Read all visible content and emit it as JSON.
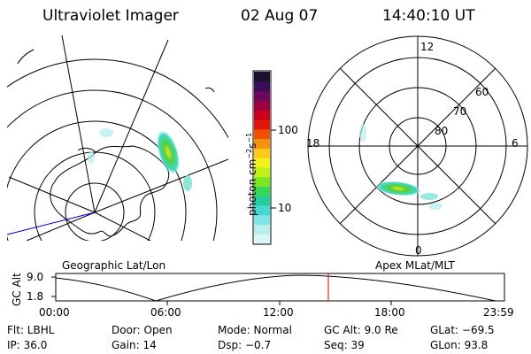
{
  "header": {
    "instrument": "Ultraviolet Imager",
    "date": "02 Aug 07",
    "time": "14:40:10 UT"
  },
  "left_panel": {
    "caption": "Geographic Lat/Lon"
  },
  "right_panel": {
    "caption": "Apex MLat/MLT",
    "mlt_labels": [
      "12",
      "18",
      "6",
      "0"
    ],
    "lat_labels": [
      "60",
      "70",
      "80"
    ]
  },
  "colorbar": {
    "unit_label": "photon cm",
    "unit_sup1": "−2",
    "unit_mid": "s",
    "unit_sup2": "−1",
    "tick_100": "100",
    "tick_10": "10",
    "colors": [
      "#1a1030",
      "#3a0c5a",
      "#6a0860",
      "#9a0040",
      "#c8001a",
      "#e0140a",
      "#f05000",
      "#f7900a",
      "#ffc814",
      "#f2f21a",
      "#bff01a",
      "#7ee620",
      "#38d858",
      "#22cfa0",
      "#45d8d0",
      "#80e4e4",
      "#b8eeee",
      "#dbf6f6"
    ]
  },
  "altitude_plot": {
    "ylabel": "GC Alt",
    "yticks": [
      "9.0",
      "1.8"
    ],
    "xticks": [
      "00:00",
      "06:00",
      "12:00",
      "18:00",
      "23:59"
    ],
    "marker_color": "#cc0000"
  },
  "info": {
    "flt": "Flt: LBHL",
    "door": "Door: Open",
    "mode": "Mode: Normal",
    "gc_alt": "GC Alt: 9.0 Re",
    "glat": "GLat: −69.5",
    "ip": "IP: 36.0",
    "gain": "Gain: 14",
    "dsp": "Dsp:    −0.7",
    "seq": "Seq: 39",
    "glon": "GLon:  93.8"
  }
}
